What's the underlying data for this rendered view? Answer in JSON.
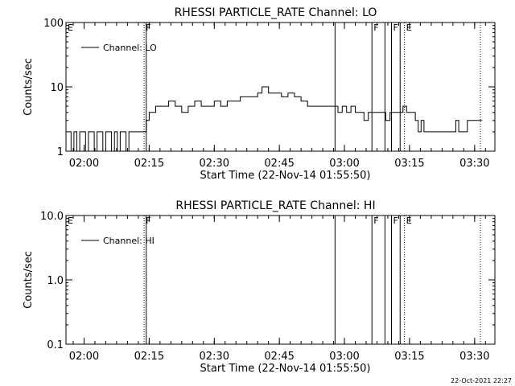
{
  "footer_stamp": "22-Oct-2021 22:27",
  "chart_data": [
    {
      "type": "line",
      "title": "RHESSI PARTICLE_RATE Channel: LO",
      "xlabel": "Start Time (22-Nov-14 01:55:50)",
      "ylabel": "Counts/sec",
      "yscale": "log",
      "ylim": [
        1,
        100
      ],
      "yticks": [
        1,
        10,
        100
      ],
      "ytick_labels": [
        "1",
        "10",
        "100"
      ],
      "xlim": [
        "01:55:50",
        "03:34:40"
      ],
      "xticks": [
        "02:00",
        "02:15",
        "02:30",
        "02:45",
        "03:00",
        "03:15",
        "03:30"
      ],
      "legend": {
        "label": "Channel: LO",
        "placement": "top-left"
      },
      "markers": [
        {
          "time": "01:55:50",
          "label": "E",
          "style": "solid"
        },
        {
          "time": "02:13:50",
          "label": "F",
          "style": "dotted"
        },
        {
          "time": "02:14:20",
          "label": "",
          "style": "solid"
        },
        {
          "time": "02:57:50",
          "label": "",
          "style": "solid"
        },
        {
          "time": "03:06:20",
          "label": "F",
          "style": "solid"
        },
        {
          "time": "03:09:20",
          "label": "",
          "style": "solid"
        },
        {
          "time": "03:10:50",
          "label": "F",
          "style": "solid"
        },
        {
          "time": "03:12:50",
          "label": "",
          "style": "solid"
        },
        {
          "time": "03:13:50",
          "label": "E",
          "style": "dotted"
        },
        {
          "time": "03:31:20",
          "label": "",
          "style": "dotted"
        }
      ],
      "series": [
        {
          "name": "Channel: LO",
          "x": [
            "01:56:20",
            "01:57:00",
            "01:57:40",
            "01:58:20",
            "01:59:00",
            "01:59:40",
            "02:00:20",
            "02:01:00",
            "02:01:40",
            "02:02:20",
            "02:03:00",
            "02:03:40",
            "02:04:20",
            "02:05:00",
            "02:05:40",
            "02:06:20",
            "02:07:00",
            "02:07:40",
            "02:08:20",
            "02:09:00",
            "02:09:40",
            "02:10:20",
            "02:11:00",
            "02:11:40",
            "02:12:20",
            "02:13:00",
            "02:13:40",
            "02:14:20",
            "02:15:00",
            "02:16:30",
            "02:18:00",
            "02:19:30",
            "02:21:00",
            "02:22:30",
            "02:24:00",
            "02:25:30",
            "02:27:00",
            "02:28:30",
            "02:30:00",
            "02:31:30",
            "02:33:00",
            "02:34:30",
            "02:36:00",
            "02:37:30",
            "02:39:00",
            "02:40:00",
            "02:41:00",
            "02:42:30",
            "02:44:00",
            "02:45:30",
            "02:47:00",
            "02:48:30",
            "02:50:00",
            "02:51:30",
            "02:53:00",
            "02:54:30",
            "02:56:00",
            "02:57:30",
            "02:58:30",
            "02:59:30",
            "03:00:30",
            "03:01:30",
            "03:02:30",
            "03:03:30",
            "03:04:30",
            "03:05:30",
            "03:06:30",
            "03:07:30",
            "03:08:30",
            "03:09:30",
            "03:10:30",
            "03:11:30",
            "03:12:30",
            "03:13:30",
            "03:14:20",
            "03:15:00",
            "03:15:40",
            "03:16:20",
            "03:17:00",
            "03:17:40",
            "03:18:20",
            "03:20:00",
            "03:22:00",
            "03:24:00",
            "03:25:00",
            "03:25:40",
            "03:26:20",
            "03:27:00",
            "03:27:40",
            "03:28:20",
            "03:29:00",
            "03:30:00",
            "03:31:00"
          ],
          "y": [
            2,
            1,
            2,
            1,
            2,
            2,
            1,
            2,
            2,
            1,
            2,
            2,
            1,
            2,
            2,
            1,
            2,
            1,
            2,
            2,
            1,
            2,
            2,
            2,
            2,
            2,
            2,
            3,
            4,
            5,
            5,
            6,
            5,
            4,
            5,
            6,
            5,
            5,
            6,
            5,
            6,
            6,
            7,
            7,
            7,
            8,
            10,
            8,
            8,
            7,
            8,
            7,
            6,
            5,
            5,
            5,
            5,
            5,
            4,
            5,
            4,
            5,
            4,
            4,
            3,
            4,
            4,
            4,
            4,
            3,
            4,
            4,
            4,
            5,
            4,
            4,
            4,
            3,
            2,
            3,
            2,
            2,
            2,
            2,
            2,
            3,
            2,
            2,
            2,
            3,
            3,
            3,
            3
          ]
        }
      ]
    },
    {
      "type": "line",
      "title": "RHESSI PARTICLE_RATE Channel: HI",
      "xlabel": "Start Time (22-Nov-14 01:55:50)",
      "ylabel": "Counts/sec",
      "yscale": "log",
      "ylim": [
        0.1,
        10
      ],
      "yticks": [
        0.1,
        1,
        10
      ],
      "ytick_labels": [
        "0.1",
        "1.0",
        "10.0"
      ],
      "xlim": [
        "01:55:50",
        "03:34:40"
      ],
      "xticks": [
        "02:00",
        "02:15",
        "02:30",
        "02:45",
        "03:00",
        "03:15",
        "03:30"
      ],
      "legend": {
        "label": "Channel: HI",
        "placement": "top-left"
      },
      "markers": [
        {
          "time": "01:55:50",
          "label": "E",
          "style": "solid"
        },
        {
          "time": "02:13:50",
          "label": "F",
          "style": "dotted"
        },
        {
          "time": "02:14:20",
          "label": "",
          "style": "solid"
        },
        {
          "time": "02:57:50",
          "label": "",
          "style": "solid"
        },
        {
          "time": "03:06:20",
          "label": "F",
          "style": "solid"
        },
        {
          "time": "03:09:20",
          "label": "",
          "style": "solid"
        },
        {
          "time": "03:10:50",
          "label": "F",
          "style": "solid"
        },
        {
          "time": "03:12:50",
          "label": "",
          "style": "solid"
        },
        {
          "time": "03:13:50",
          "label": "E",
          "style": "dotted"
        },
        {
          "time": "03:31:20",
          "label": "",
          "style": "dotted"
        }
      ],
      "series": []
    }
  ]
}
